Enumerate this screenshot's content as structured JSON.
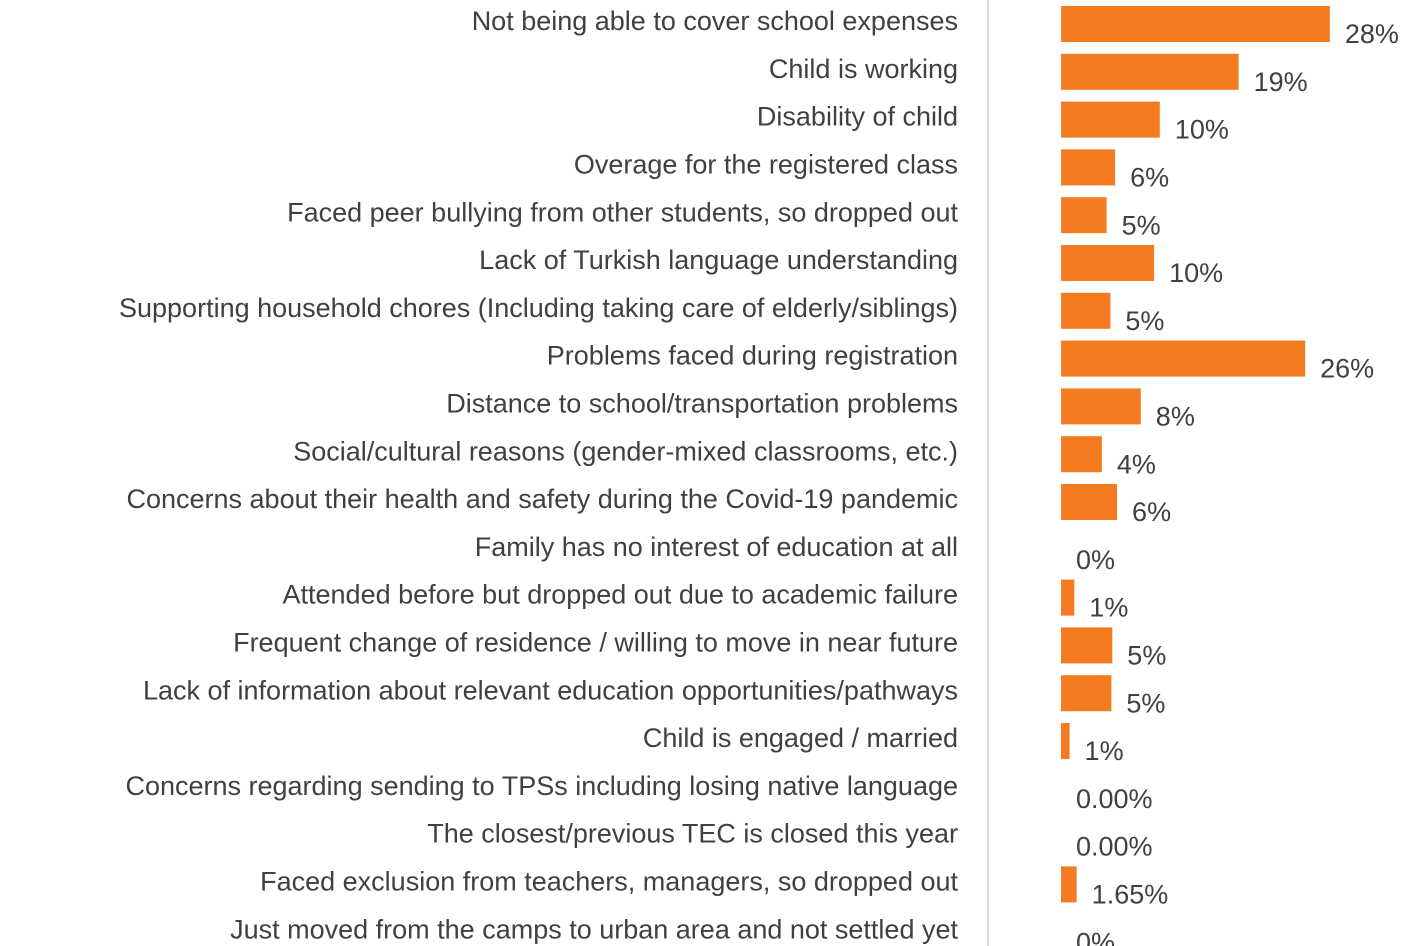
{
  "chart_data": {
    "type": "bar",
    "orientation": "horizontal",
    "categories": [
      "Not being able to cover school expenses",
      "Child is working",
      "Disability of child",
      "Overage for the registered class",
      "Faced peer bullying from other students, so dropped out",
      "Lack of Turkish language understanding",
      "Supporting household chores (Including taking care of elderly/siblings)",
      "Problems faced during registration",
      "Distance to school/transportation problems",
      "Social/cultural reasons (gender-mixed classrooms, etc.)",
      "Concerns about their health and safety during the Covid-19 pandemic",
      "Family has no interest of education at all",
      "Attended before but dropped out due to academic failure",
      "Frequent change of residence / willing to move in near future",
      "Lack of information about relevant education opportunities/pathways",
      "Child is engaged / married",
      "Concerns regarding sending to TPSs including losing native language",
      "The closest/previous TEC is closed this year",
      "Faced exclusion from teachers, managers, so dropped out",
      "Just moved from the camps to urban area and not settled yet"
    ],
    "values": [
      28.3,
      18.7,
      10.4,
      5.7,
      4.8,
      9.8,
      5.2,
      25.7,
      8.4,
      4.3,
      5.9,
      0,
      1.4,
      5.4,
      5.3,
      0.9,
      0,
      0,
      1.65,
      0
    ],
    "value_labels": [
      "28%",
      "19%",
      "10%",
      "6%",
      "5%",
      "10%",
      "5%",
      "26%",
      "8%",
      "4%",
      "6%",
      "0%",
      "1%",
      "5%",
      "5%",
      "1%",
      "0.00%",
      "0.00%",
      "1.65%",
      "0%"
    ],
    "color": "#f47b20",
    "xlim": [
      0,
      30
    ]
  }
}
